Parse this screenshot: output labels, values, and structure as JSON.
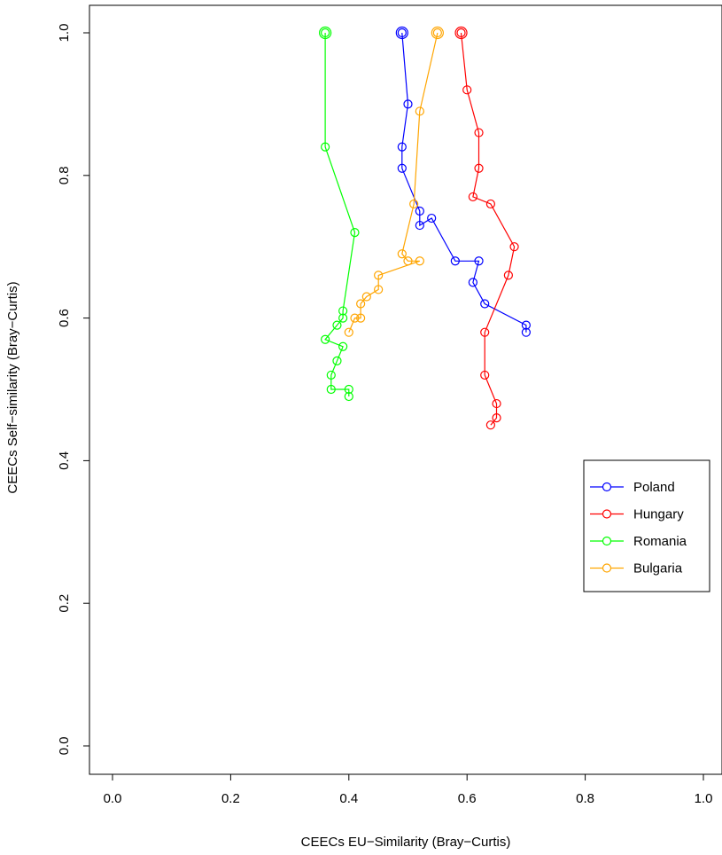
{
  "chart_data": {
    "type": "line",
    "title": "",
    "xlabel": "CEECs EU−Similarity (Bray−Curtis)",
    "ylabel": "CEECs Self−similarity (Bray−Curtis)",
    "xlim": [
      0,
      1
    ],
    "ylim": [
      0,
      1
    ],
    "xticks": [
      "0.0",
      "0.2",
      "0.4",
      "0.6",
      "0.8",
      "1.0"
    ],
    "yticks": [
      "0.0",
      "0.2",
      "0.4",
      "0.6",
      "0.8",
      "1.0"
    ],
    "grid": false,
    "legend_position": "right",
    "series": [
      {
        "name": "Poland",
        "color": "#0000ff",
        "points": [
          [
            0.49,
            1.0
          ],
          [
            0.5,
            0.9
          ],
          [
            0.49,
            0.84
          ],
          [
            0.49,
            0.81
          ],
          [
            0.52,
            0.75
          ],
          [
            0.52,
            0.73
          ],
          [
            0.54,
            0.74
          ],
          [
            0.58,
            0.68
          ],
          [
            0.62,
            0.68
          ],
          [
            0.61,
            0.65
          ],
          [
            0.63,
            0.62
          ],
          [
            0.7,
            0.59
          ],
          [
            0.7,
            0.58
          ]
        ]
      },
      {
        "name": "Hungary",
        "color": "#ff0000",
        "points": [
          [
            0.59,
            1.0
          ],
          [
            0.6,
            0.92
          ],
          [
            0.62,
            0.86
          ],
          [
            0.62,
            0.81
          ],
          [
            0.61,
            0.77
          ],
          [
            0.64,
            0.76
          ],
          [
            0.68,
            0.7
          ],
          [
            0.67,
            0.66
          ],
          [
            0.63,
            0.58
          ],
          [
            0.63,
            0.52
          ],
          [
            0.65,
            0.48
          ],
          [
            0.65,
            0.46
          ],
          [
            0.64,
            0.45
          ]
        ]
      },
      {
        "name": "Romania",
        "color": "#00ff00",
        "points": [
          [
            0.36,
            1.0
          ],
          [
            0.36,
            0.84
          ],
          [
            0.41,
            0.72
          ],
          [
            0.39,
            0.61
          ],
          [
            0.39,
            0.6
          ],
          [
            0.38,
            0.59
          ],
          [
            0.36,
            0.57
          ],
          [
            0.39,
            0.56
          ],
          [
            0.38,
            0.54
          ],
          [
            0.37,
            0.52
          ],
          [
            0.37,
            0.5
          ],
          [
            0.4,
            0.5
          ],
          [
            0.4,
            0.49
          ]
        ]
      },
      {
        "name": "Bulgaria",
        "color": "#ffa500",
        "points": [
          [
            0.55,
            1.0
          ],
          [
            0.52,
            0.89
          ],
          [
            0.51,
            0.76
          ],
          [
            0.49,
            0.69
          ],
          [
            0.5,
            0.68
          ],
          [
            0.52,
            0.68
          ],
          [
            0.45,
            0.66
          ],
          [
            0.45,
            0.64
          ],
          [
            0.43,
            0.63
          ],
          [
            0.42,
            0.62
          ],
          [
            0.42,
            0.6
          ],
          [
            0.41,
            0.6
          ],
          [
            0.4,
            0.58
          ]
        ]
      }
    ]
  }
}
